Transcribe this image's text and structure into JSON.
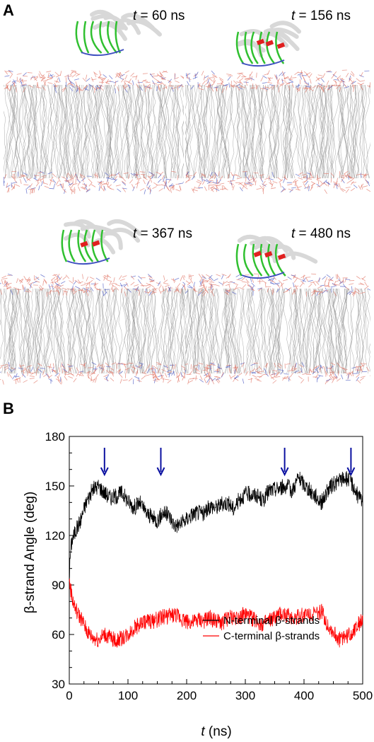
{
  "panels": {
    "a_label": "A",
    "b_label": "B"
  },
  "snapshots": [
    {
      "var": "t",
      "rest": " = 60 ns"
    },
    {
      "var": "t",
      "rest": " = 156 ns"
    },
    {
      "var": "t",
      "rest": " = 367 ns"
    },
    {
      "var": "t",
      "rest": " = 480 ns"
    }
  ],
  "colors": {
    "lipid_tail": "#9a9a9a",
    "headgroup_red": "#e07060",
    "headgroup_blue": "#4050c0",
    "helix": "#e02020",
    "coil": "#30c030",
    "sheet": "#d8d8d8",
    "n_terminal": "#000000",
    "c_terminal": "#ff0000",
    "arrow": "#0a10a0"
  },
  "chart_data": {
    "type": "line",
    "xlabel_var": "t",
    "xlabel_rest": " (ns)",
    "ylabel": "β-strand Angle (deg)",
    "xlim": [
      0,
      500
    ],
    "ylim": [
      30,
      180
    ],
    "xticks": [
      0,
      100,
      200,
      300,
      400,
      500
    ],
    "yticks": [
      30,
      60,
      90,
      120,
      150,
      180
    ],
    "grid": false,
    "legend_position": "center-right",
    "arrows_at_t": [
      60,
      156,
      367,
      480
    ],
    "series": [
      {
        "name": "N-terminal β-strands",
        "color": "#000000",
        "x": [
          0,
          2,
          5,
          10,
          15,
          20,
          25,
          30,
          40,
          50,
          60,
          70,
          80,
          90,
          100,
          110,
          120,
          130,
          140,
          150,
          160,
          170,
          180,
          190,
          200,
          210,
          220,
          230,
          240,
          250,
          260,
          270,
          280,
          290,
          300,
          310,
          320,
          330,
          340,
          350,
          360,
          370,
          380,
          390,
          400,
          410,
          420,
          430,
          440,
          450,
          460,
          470,
          480,
          490,
          500
        ],
        "values": [
          95,
          110,
          118,
          122,
          126,
          130,
          136,
          141,
          148,
          150,
          146,
          143,
          144,
          146,
          141,
          137,
          140,
          134,
          131,
          129,
          134,
          132,
          126,
          127,
          130,
          133,
          134,
          133,
          138,
          137,
          139,
          140,
          136,
          142,
          145,
          145,
          144,
          141,
          147,
          148,
          149,
          150,
          147,
          155,
          151,
          147,
          144,
          140,
          147,
          151,
          153,
          155,
          153,
          145,
          140
        ]
      },
      {
        "name": "C-terminal β-strands",
        "color": "#ff0000",
        "x": [
          0,
          2,
          5,
          10,
          15,
          20,
          25,
          30,
          40,
          50,
          60,
          70,
          80,
          90,
          100,
          110,
          120,
          130,
          140,
          150,
          160,
          170,
          180,
          190,
          200,
          210,
          220,
          230,
          240,
          250,
          260,
          270,
          280,
          290,
          300,
          310,
          320,
          330,
          340,
          350,
          360,
          370,
          380,
          390,
          400,
          410,
          420,
          430,
          440,
          450,
          460,
          470,
          480,
          490,
          500
        ],
        "values": [
          92,
          88,
          82,
          76,
          72,
          70,
          66,
          62,
          58,
          57,
          60,
          58,
          56,
          58,
          60,
          64,
          66,
          68,
          68,
          69,
          71,
          71,
          72,
          70,
          68,
          67,
          69,
          68,
          70,
          68,
          67,
          70,
          70,
          71,
          72,
          70,
          68,
          66,
          68,
          70,
          72,
          72,
          70,
          71,
          72,
          73,
          72,
          74,
          66,
          61,
          57,
          59,
          60,
          66,
          68
        ]
      }
    ]
  }
}
